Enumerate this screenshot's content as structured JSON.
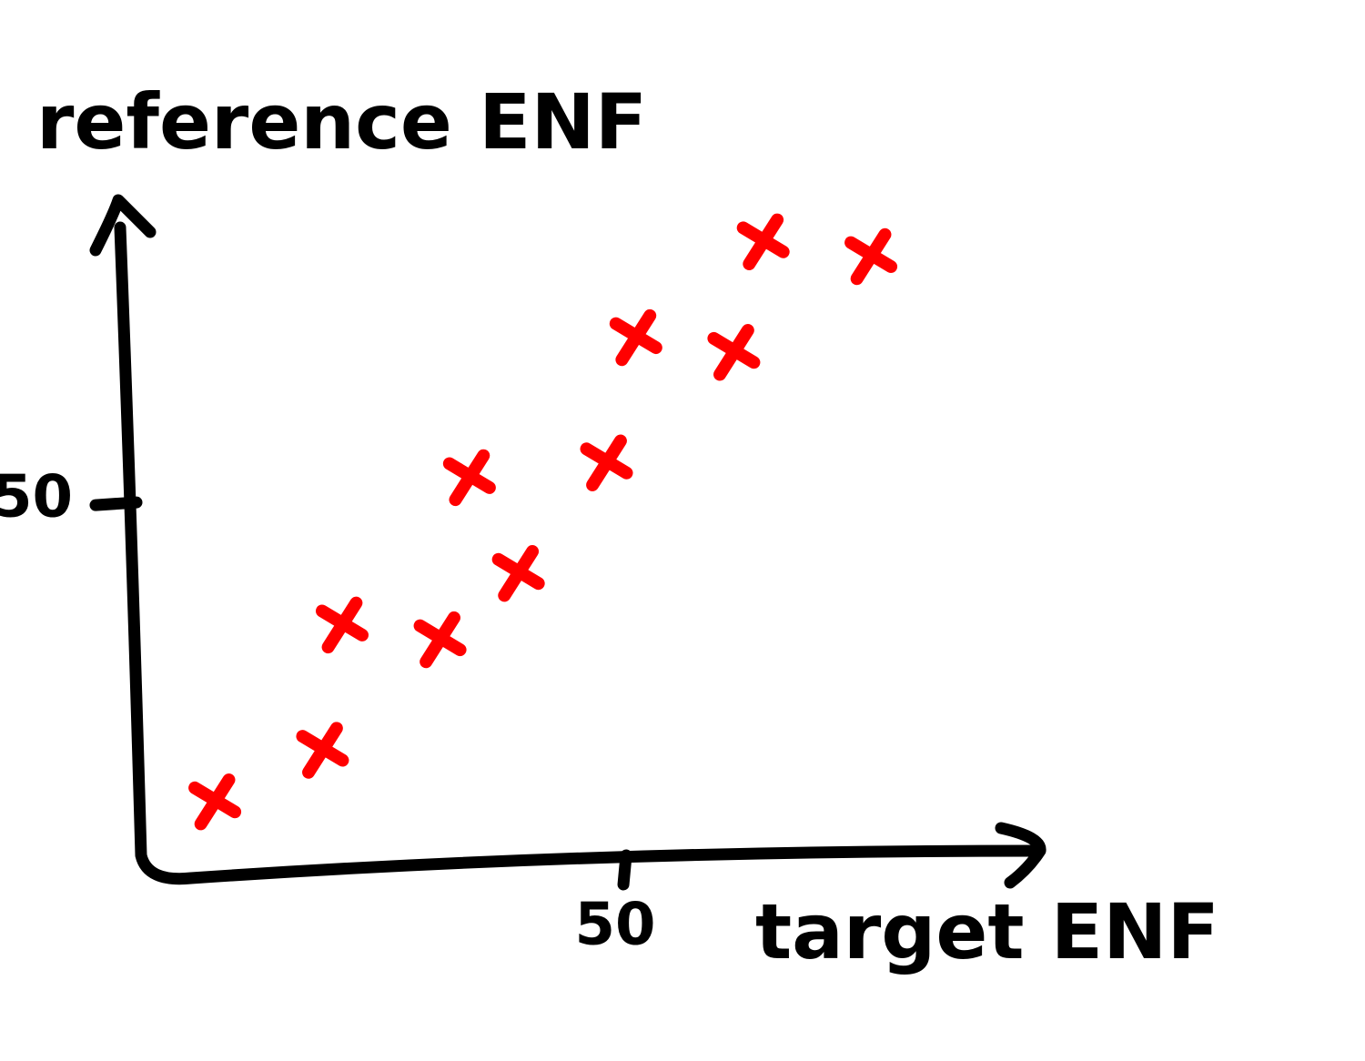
{
  "chart_data": {
    "type": "scatter",
    "xlabel": "target ENF",
    "ylabel": "reference ENF",
    "x": [
      8,
      19,
      21,
      31,
      39,
      34,
      48,
      51,
      61,
      64,
      75
    ],
    "series": [
      {
        "color": "#ff0000",
        "values": [
          10,
          17,
          34,
          32,
          41,
          54,
          56,
          73,
          71,
          86,
          84
        ]
      }
    ],
    "xlim": [
      0,
      92
    ],
    "ylim": [
      0,
      92
    ],
    "xticks": [
      50
    ],
    "yticks": [
      50
    ]
  }
}
